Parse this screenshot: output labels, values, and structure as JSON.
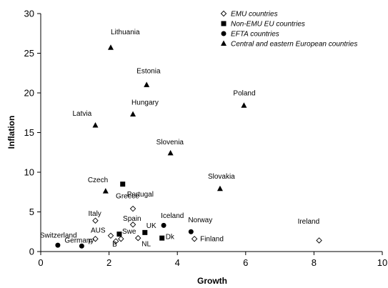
{
  "chart_data": {
    "type": "scatter",
    "title": "",
    "xlabel": "Growth",
    "ylabel": "Inflation",
    "xlim": [
      0,
      10
    ],
    "ylim": [
      0,
      30
    ],
    "x_ticks": [
      "0",
      "2",
      "4",
      "6",
      "8",
      "10"
    ],
    "y_ticks": [
      "0",
      "5",
      "10",
      "15",
      "20",
      "25",
      "30"
    ],
    "grid": false,
    "legend_position": "top-right",
    "series": [
      {
        "name": "EMU countries",
        "marker": "diamond-open",
        "points": [
          {
            "label": "Ireland",
            "x": 8.15,
            "y": 1.4
          },
          {
            "label": "Finland",
            "x": 4.5,
            "y": 1.6
          },
          {
            "label": "NL",
            "x": 2.85,
            "y": 1.7
          },
          {
            "label": "Spain",
            "x": 2.7,
            "y": 3.4
          },
          {
            "label": "Greece",
            "x": 2.7,
            "y": 5.4
          },
          {
            "label": "Italy",
            "x": 1.6,
            "y": 3.9
          },
          {
            "label": "F",
            "x": 1.6,
            "y": 1.6
          },
          {
            "label": "AUS",
            "x": 2.05,
            "y": 2.0
          },
          {
            "label": "B",
            "x": 2.2,
            "y": 1.3
          },
          {
            "label": "",
            "x": 2.35,
            "y": 1.6
          }
        ]
      },
      {
        "name": "Non-EMU EU countries",
        "marker": "square",
        "points": [
          {
            "label": "Portugal",
            "x": 2.4,
            "y": 8.5
          },
          {
            "label": "UK",
            "x": 3.05,
            "y": 2.4
          },
          {
            "label": "Dk",
            "x": 3.55,
            "y": 1.7
          },
          {
            "label": "Swe",
            "x": 2.3,
            "y": 2.2
          }
        ]
      },
      {
        "name": "EFTA countries",
        "marker": "circle",
        "points": [
          {
            "label": "Switzerland",
            "x": 0.5,
            "y": 0.8
          },
          {
            "label": "Germany",
            "x": 1.2,
            "y": 0.7
          },
          {
            "label": "Iceland",
            "x": 3.6,
            "y": 3.3
          },
          {
            "label": "Norway",
            "x": 4.4,
            "y": 2.5
          }
        ]
      },
      {
        "name": "Central and eastern European countries",
        "marker": "triangle",
        "points": [
          {
            "label": "Lithuania",
            "x": 2.05,
            "y": 25.7
          },
          {
            "label": "Estonia",
            "x": 3.1,
            "y": 21.0
          },
          {
            "label": "Poland",
            "x": 5.95,
            "y": 18.4
          },
          {
            "label": "Latvia",
            "x": 1.6,
            "y": 15.9
          },
          {
            "label": "Hungary",
            "x": 2.7,
            "y": 17.3
          },
          {
            "label": "Slovenia",
            "x": 3.8,
            "y": 12.4
          },
          {
            "label": "Czech",
            "x": 1.9,
            "y": 7.6
          },
          {
            "label": "Slovakia",
            "x": 5.25,
            "y": 7.9
          }
        ]
      }
    ]
  }
}
